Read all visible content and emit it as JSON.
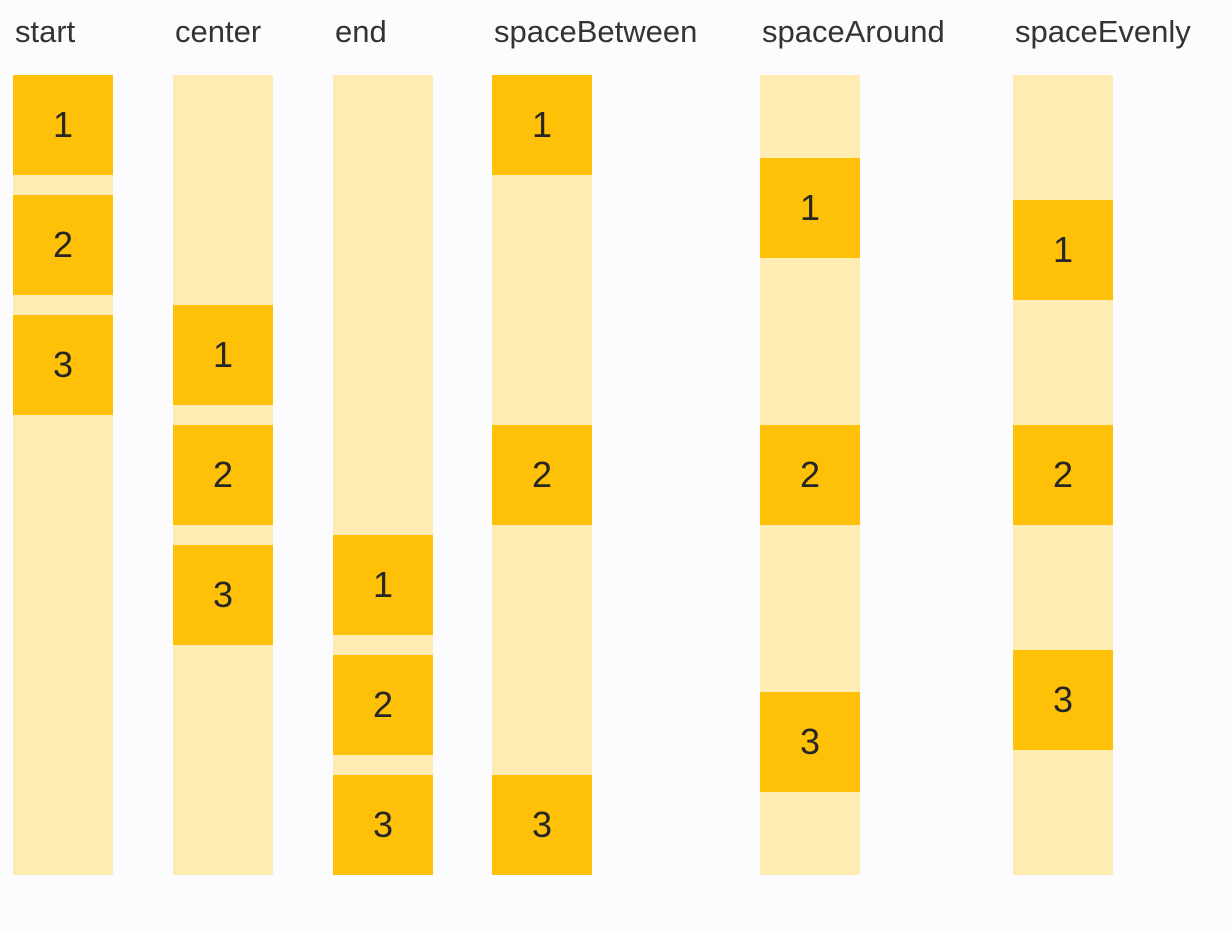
{
  "colors": {
    "page_bg": "#FCFCFF",
    "box": "#FFC107",
    "track": "#FFECB3",
    "label_text": "#333333",
    "number_text": "#262626"
  },
  "columns": [
    {
      "label": "start",
      "items": [
        "1",
        "2",
        "3"
      ]
    },
    {
      "label": "center",
      "items": [
        "1",
        "2",
        "3"
      ]
    },
    {
      "label": "end",
      "items": [
        "1",
        "2",
        "3"
      ]
    },
    {
      "label": "spaceBetween",
      "items": [
        "1",
        "2",
        "3"
      ]
    },
    {
      "label": "spaceAround",
      "items": [
        "1",
        "2",
        "3"
      ]
    },
    {
      "label": "spaceEvenly",
      "items": [
        "1",
        "2",
        "3"
      ]
    }
  ]
}
